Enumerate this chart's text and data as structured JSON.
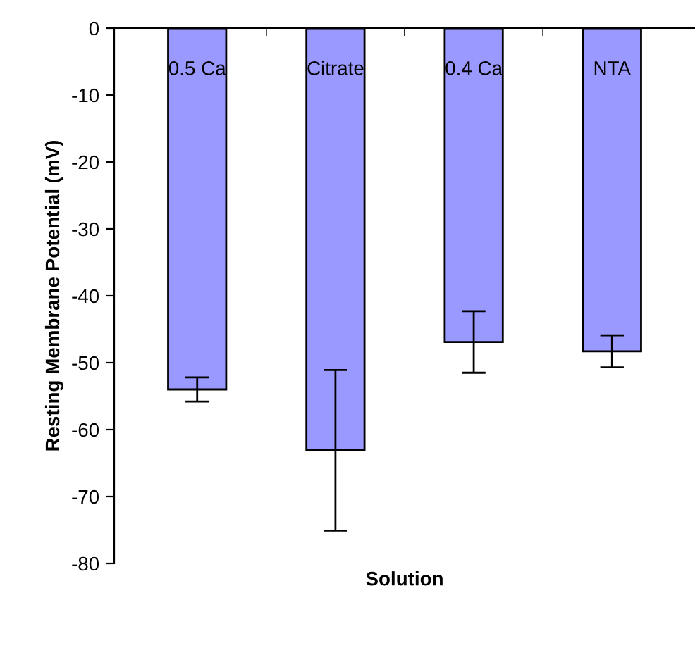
{
  "chart_data": {
    "type": "bar",
    "xlabel": "Solution",
    "ylabel": "Resting Membrane Potential (mV)",
    "categories": [
      "0.5 Ca",
      "Citrate",
      "0.4 Ca",
      "NTA"
    ],
    "values": [
      -54.0,
      -63.1,
      -46.9,
      -48.3
    ],
    "errors": [
      1.8,
      12.0,
      4.6,
      2.4
    ],
    "color": "#9999ff",
    "ylim": [
      -80,
      0
    ],
    "yticks": [
      0,
      -10,
      -20,
      -30,
      -40,
      -50,
      -60,
      -70,
      -80
    ],
    "grid": false,
    "legend": false
  }
}
